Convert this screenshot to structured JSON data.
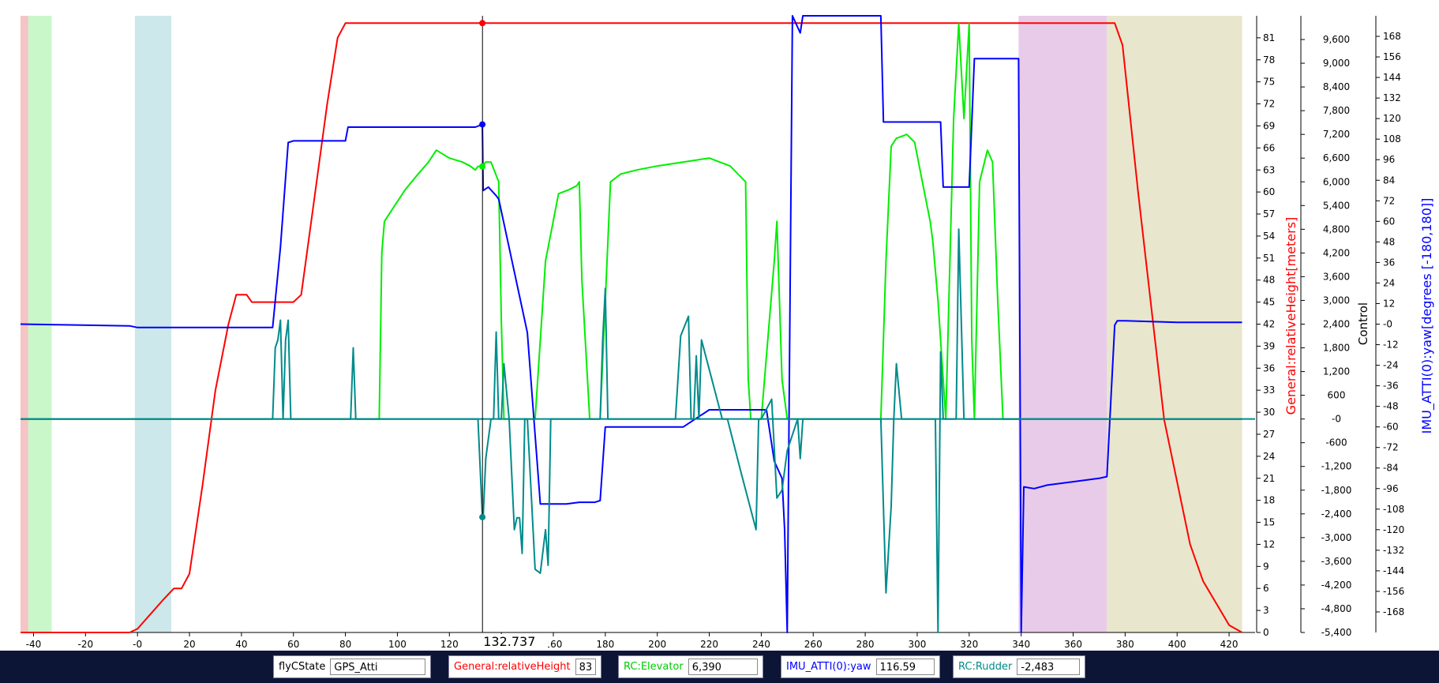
{
  "chart_data": {
    "type": "line",
    "x_axis": {
      "range": [
        -45,
        430
      ],
      "ticks": [
        -40,
        -20,
        0,
        20,
        40,
        60,
        80,
        100,
        120,
        140,
        160,
        180,
        200,
        220,
        240,
        260,
        280,
        300,
        320,
        340,
        360,
        380,
        400,
        420
      ],
      "tick_labels": [
        "-40",
        "-20",
        "-0",
        "20",
        "40",
        "60",
        "80",
        "100",
        "120",
        "140",
        "160",
        "180",
        "200",
        "220",
        "240",
        "260",
        "280",
        "300",
        "320",
        "340",
        "360",
        "380",
        "400",
        "420"
      ]
    },
    "cursor": {
      "x": 132.737,
      "label": "132.737"
    },
    "shaded_regions": [
      {
        "x0": -45,
        "x1": -42,
        "color": "#f5c4c4"
      },
      {
        "x0": -42,
        "x1": -33,
        "color": "#c9f7c9"
      },
      {
        "x0": -1,
        "x1": 13,
        "color": "#cde8ea"
      },
      {
        "x0": 339,
        "x1": 373,
        "color": "#e8cbe8"
      },
      {
        "x0": 373,
        "x1": 425,
        "color": "#e8e6cc"
      }
    ],
    "axes": [
      {
        "title": "General:relativeHeight[meters]",
        "color": "#ff0000",
        "range": [
          0,
          84
        ],
        "ticks": [
          0,
          3,
          6,
          9,
          12,
          15,
          18,
          21,
          24,
          27,
          30,
          33,
          36,
          39,
          42,
          45,
          48,
          51,
          54,
          57,
          60,
          63,
          66,
          69,
          72,
          75,
          78,
          81
        ],
        "tick_labels": [
          "0",
          "3",
          "6",
          "9",
          "12",
          "15",
          "18",
          "21",
          "24",
          "27",
          "30",
          "33",
          "36",
          "39",
          "42",
          "45",
          "48",
          "51",
          "54",
          "57",
          "60",
          "63",
          "66",
          "69",
          "72",
          "75",
          "78",
          "81"
        ]
      },
      {
        "title": "",
        "color": "#000000",
        "range": [
          -5400,
          10200
        ],
        "ticks": [
          -5400,
          -4800,
          -4200,
          -3600,
          -3000,
          -2400,
          -1800,
          -1200,
          -600,
          0,
          600,
          1200,
          1800,
          2400,
          3000,
          3600,
          4200,
          4800,
          5400,
          6000,
          6600,
          7200,
          7800,
          8400,
          9000,
          9600
        ],
        "tick_labels": [
          "-5,400",
          "-4,800",
          "-4,200",
          "-3,600",
          "-3,000",
          "-2,400",
          "-1,800",
          "-1,200",
          "-600",
          "-0",
          "600",
          "1,200",
          "1,800",
          "2,400",
          "3,000",
          "3,600",
          "4,200",
          "4,800",
          "5,400",
          "6,000",
          "6,600",
          "7,200",
          "7,800",
          "8,400",
          "9,000",
          "9,600"
        ]
      },
      {
        "title": "Control",
        "color": "#000000",
        "range": null,
        "ticks": [],
        "tick_labels": []
      },
      {
        "title": "IMU_ATTI(0):yaw[degrees [-180,180]]",
        "color": "#0000ff",
        "range": [
          -180,
          180
        ],
        "ticks": [
          -168,
          -156,
          -144,
          -132,
          -120,
          -108,
          -96,
          -84,
          -72,
          -60,
          -48,
          -36,
          -24,
          -12,
          0,
          12,
          24,
          36,
          48,
          60,
          72,
          84,
          96,
          108,
          120,
          132,
          144,
          156,
          168
        ],
        "tick_labels": [
          "-168",
          "-156",
          "-144",
          "-132",
          "-120",
          "-108",
          "-96",
          "-84",
          "-72",
          "-60",
          "-48",
          "-36",
          "-24",
          "-12",
          "-0",
          "12",
          "24",
          "36",
          "48",
          "60",
          "72",
          "84",
          "96",
          "108",
          "120",
          "132",
          "144",
          "156",
          "168"
        ]
      }
    ],
    "series": [
      {
        "name": "General:relativeHeight",
        "color": "#ff0000",
        "axis": 0,
        "x": [
          -45,
          -3,
          0,
          5,
          10,
          14,
          17,
          20,
          25,
          30,
          35,
          38,
          42,
          44,
          47,
          53,
          60,
          63,
          68,
          73,
          77,
          80,
          85,
          100,
          132.7,
          180,
          220,
          260,
          300,
          340,
          350,
          373,
          376,
          379,
          385,
          395,
          405,
          410,
          415,
          420,
          425
        ],
        "y": [
          0,
          0,
          0.5,
          2.5,
          4.5,
          6,
          6,
          8,
          20,
          33,
          42,
          46,
          46,
          45,
          45,
          45,
          45,
          46,
          59,
          72,
          81,
          83,
          83,
          83,
          83,
          83,
          83,
          83,
          83,
          83,
          83,
          83,
          83,
          80,
          60,
          29,
          12,
          7,
          4,
          1,
          0
        ]
      },
      {
        "name": "RC:Elevator",
        "color": "#00ee00",
        "axis": 1,
        "x": [
          -45,
          92,
          93,
          94,
          95,
          100,
          103,
          108,
          112,
          115,
          120,
          125,
          128,
          130,
          131,
          132.7,
          134,
          136,
          139,
          140,
          141,
          145,
          147,
          153,
          157,
          162,
          166,
          169,
          170,
          171,
          174,
          178,
          182,
          186,
          192,
          200,
          210,
          220,
          228,
          234,
          235,
          236,
          240,
          245,
          246,
          248,
          250,
          286,
          288,
          290,
          292,
          296,
          299,
          302,
          305,
          306,
          308,
          310,
          311,
          314,
          316,
          318,
          320,
          321,
          322,
          324,
          327,
          329,
          331,
          333,
          336,
          337,
          338,
          425
        ],
        "y": [
          0,
          0,
          0,
          4200,
          5000,
          5500,
          5800,
          6200,
          6500,
          6800,
          6600,
          6500,
          6400,
          6300,
          6390,
          6390,
          6500,
          6500,
          6000,
          2500,
          0,
          0,
          0,
          0,
          4000,
          5700,
          5800,
          5900,
          6000,
          3500,
          0,
          0,
          6000,
          6200,
          6300,
          6400,
          6500,
          6600,
          6400,
          6000,
          1000,
          0,
          0,
          4000,
          5000,
          1000,
          0,
          0,
          4000,
          6900,
          7100,
          7200,
          7000,
          6000,
          5000,
          4500,
          3000,
          1000,
          0,
          7600,
          10000,
          7600,
          10000,
          2000,
          0,
          6000,
          6800,
          6500,
          3000,
          0,
          0,
          0,
          0,
          0
        ]
      },
      {
        "name": "IMU_ATTI(0):yaw",
        "color": "#0000ff",
        "axis": 3,
        "x": [
          -45,
          -3,
          0,
          10,
          30,
          52,
          55,
          58,
          60,
          80,
          81,
          130,
          132.7,
          133,
          135,
          138,
          139,
          150,
          155,
          165,
          170,
          176,
          178,
          180,
          200,
          210,
          220,
          230,
          235,
          242,
          245,
          248,
          249,
          250,
          252,
          255,
          256,
          257,
          260,
          285,
          286,
          287,
          290,
          295,
          300,
          305,
          309,
          310,
          320,
          322,
          325,
          330,
          335,
          339,
          340,
          341,
          345,
          350,
          360,
          370,
          373,
          376,
          377,
          380,
          400,
          425
        ],
        "y": [
          0,
          -1,
          -2,
          -2,
          -2,
          -2,
          45,
          106,
          107,
          107,
          115,
          115,
          116.59,
          78,
          80,
          75,
          73,
          -5,
          -105,
          -105,
          -104,
          -104,
          -103,
          -60,
          -60,
          -60,
          -50,
          -50,
          -50,
          -50,
          -80,
          -90,
          -120,
          -180,
          180,
          170,
          180,
          180,
          180,
          180,
          180,
          118,
          118,
          118,
          118,
          118,
          118,
          80,
          80,
          155,
          155,
          155,
          155,
          155,
          -180,
          -95,
          -96,
          -94,
          -92,
          -90,
          -89,
          -0.5,
          2,
          2,
          1,
          1
        ]
      },
      {
        "name": "RC:Rudder",
        "color": "#008b8b",
        "axis": 1,
        "x": [
          -45,
          52,
          53,
          54,
          55,
          56,
          57,
          58,
          59,
          60,
          82,
          83,
          84,
          131,
          132.7,
          133,
          134,
          136,
          137,
          138,
          139,
          140,
          141,
          143,
          145,
          146,
          147,
          148,
          149,
          150,
          153,
          155,
          157,
          158,
          159,
          165,
          177,
          178,
          179,
          180,
          181,
          183,
          202,
          207,
          209,
          212,
          213,
          214,
          215,
          216,
          217,
          225,
          226,
          227,
          232,
          238,
          239,
          240,
          244,
          246,
          248,
          250,
          254,
          255,
          256,
          257,
          260,
          286,
          288,
          290,
          291,
          292,
          294,
          306,
          307,
          308,
          309,
          310,
          315,
          316,
          318,
          319,
          330,
          425
        ],
        "y": [
          0,
          0,
          1800,
          2000,
          2500,
          0,
          2000,
          2500,
          0,
          0,
          0,
          1800,
          0,
          0,
          -2483,
          -2483,
          -1000,
          0,
          0,
          2200,
          0,
          0,
          1400,
          0,
          -2800,
          -2500,
          -2500,
          -3400,
          0,
          0,
          -3800,
          -3900,
          -2800,
          -3700,
          0,
          0,
          0,
          0,
          2000,
          3300,
          0,
          0,
          0,
          0,
          2100,
          2600,
          0,
          0,
          1600,
          0,
          2000,
          0,
          0,
          0,
          -1300,
          -2800,
          0,
          0,
          500,
          -2000,
          -1800,
          -800,
          0,
          -1000,
          0,
          0,
          0,
          0,
          -4400,
          -2200,
          0,
          1400,
          0,
          0,
          0,
          -5400,
          1700,
          0,
          0,
          4800,
          0,
          0,
          0,
          0
        ]
      }
    ],
    "markers": [
      {
        "x": 132.7,
        "y": 83,
        "axis": 0,
        "color": "#ff0000"
      },
      {
        "x": 132.7,
        "y": 116.59,
        "axis": 3,
        "color": "#0000ff"
      },
      {
        "x": 132.7,
        "y": 6390,
        "axis": 1,
        "color": "#00ee00"
      },
      {
        "x": 132.7,
        "y": -2483,
        "axis": 1,
        "color": "#008b8b"
      }
    ]
  },
  "status": [
    {
      "id": "flyc",
      "label": "flyCState",
      "value": "GPS_Atti",
      "color": "#000000"
    },
    {
      "id": "height",
      "label": "General:relativeHeight",
      "value": "83",
      "color": "#ff0000"
    },
    {
      "id": "elevator",
      "label": "RC:Elevator",
      "value": "6,390",
      "color": "#00ee00"
    },
    {
      "id": "yaw",
      "label": "IMU_ATTI(0):yaw",
      "value": "116.59",
      "color": "#0000ff"
    },
    {
      "id": "rudder",
      "label": "RC:Rudder",
      "value": "-2,483",
      "color": "#008b8b"
    }
  ]
}
